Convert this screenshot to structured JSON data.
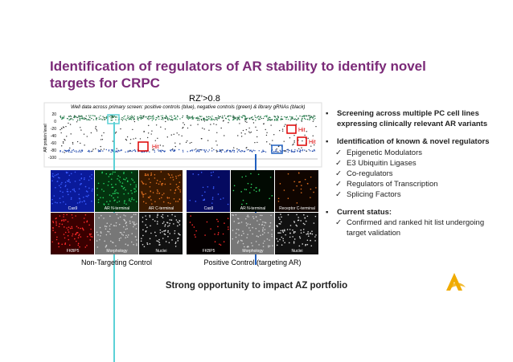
{
  "title": "Identification of regulators of AR stability to identify novel targets for CRPC",
  "screen": {
    "rz": "RZ’>0.8",
    "caption": "Well data across primary screen: positive controls (blue), negative controls (green) & library gRNAs (black)",
    "y_axis_label": "AR protein level",
    "yticks": [
      "20",
      "0",
      "-20",
      "-40",
      "-60",
      "-80",
      "-100"
    ],
    "hits": [
      "Hit",
      "Hit",
      "Hit"
    ]
  },
  "panels": [
    {
      "caption": "Non-Targeting Control",
      "labels": [
        "Cas9",
        "AR N-terminal",
        "AR C-terminal",
        "FKBP5",
        "Morphology",
        "Nuclei"
      ]
    },
    {
      "caption": "Positive Control (targeting AR)",
      "labels": [
        "Cas9",
        "AR N-terminal",
        "Receptor C-terminal",
        "FKBP5",
        "Morphology",
        "Nuclei"
      ]
    }
  ],
  "bullets": [
    {
      "text": "Screening across multiple PC cell lines expressing clinically relevant AR variants",
      "subs": []
    },
    {
      "text": "Identification of known & novel regulators",
      "subs": [
        "Epigenetic Modulators",
        "E3 Ubiquitin Ligases",
        "Co-regulators",
        "Regulators of Transcription",
        "Splicing Factors"
      ]
    },
    {
      "text": "Current status:",
      "subs": [
        "Confirmed and ranked hit list undergoing target validation"
      ]
    }
  ],
  "footer": "Strong opportunity to impact AZ portfolio"
}
